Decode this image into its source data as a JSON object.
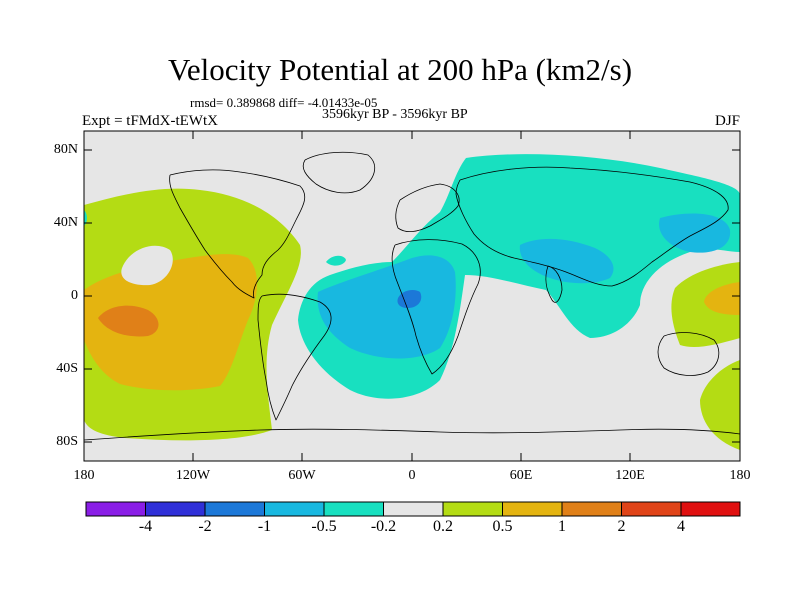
{
  "header": {
    "title": "Velocity Potential at 200 hPa (km2/s)",
    "stats": "rmsd= 0.389868 diff= -4.01433e-05",
    "period": "3596kyr BP - 3596kyr BP",
    "experiment": "Expt = tFMdX-tEWtX",
    "season": "DJF"
  },
  "axes": {
    "y_ticks": [
      "80N",
      "40N",
      "0",
      "40S",
      "80S"
    ],
    "x_ticks": [
      "180",
      "120W",
      "60W",
      "0",
      "60E",
      "120E",
      "180"
    ]
  },
  "colorbar": {
    "labels": [
      "-4",
      "-2",
      "-1",
      "-0.5",
      "-0.2",
      "0.2",
      "0.5",
      "1",
      "2",
      "4"
    ],
    "colors": [
      "#8a1ee6",
      "#3030d8",
      "#1c78d8",
      "#18b8e0",
      "#18e0c0",
      "#e6e6e6",
      "#b4dc14",
      "#e4b410",
      "#e08018",
      "#e04418",
      "#e01010"
    ]
  },
  "palette": {
    "land_line": "#000000",
    "neutral": "#e6e6e6",
    "cyan": "#18e0c0",
    "light_blue": "#18b8e0",
    "blue": "#1c78d8",
    "yellow_green": "#b4dc14",
    "gold": "#e4b410",
    "orange": "#e08018"
  }
}
